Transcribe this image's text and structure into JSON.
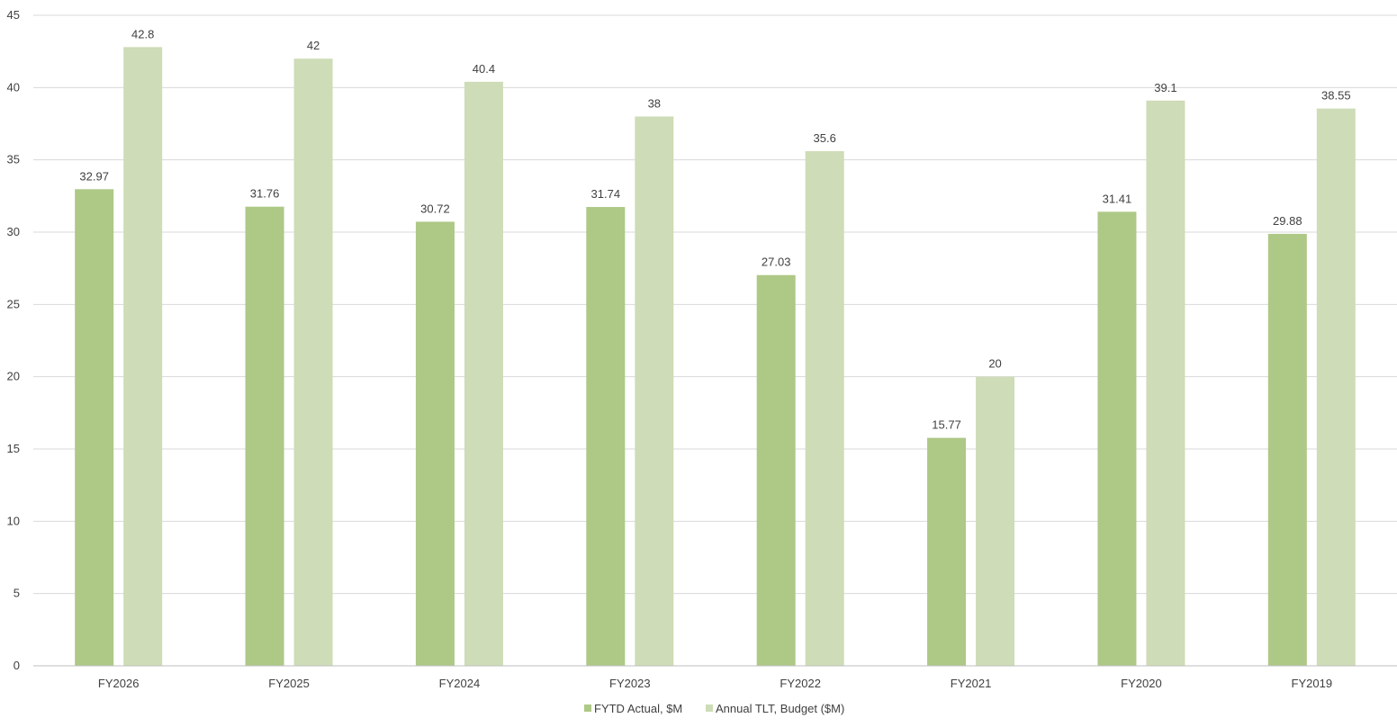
{
  "chart_data": {
    "type": "bar",
    "title": "",
    "xlabel": "",
    "ylabel": "",
    "categories": [
      "FY2026",
      "FY2025",
      "FY2024",
      "FY2023",
      "FY2022",
      "FY2021",
      "FY2020",
      "FY2019"
    ],
    "series": [
      {
        "name": "FYTD Actual, $M",
        "color": "#aec886",
        "values": [
          32.97,
          31.76,
          30.72,
          31.74,
          27.03,
          15.77,
          31.41,
          29.88
        ]
      },
      {
        "name": "Annual TLT, Budget ($M)",
        "color": "#cedcb7",
        "values": [
          42.8,
          42,
          40.4,
          38,
          35.6,
          20,
          39.1,
          38.55
        ]
      }
    ],
    "ylim": [
      0,
      45
    ],
    "yticks": [
      0,
      5,
      10,
      15,
      20,
      25,
      30,
      35,
      40,
      45
    ],
    "grid": true,
    "data_labels": true,
    "legend_position": "bottom"
  }
}
